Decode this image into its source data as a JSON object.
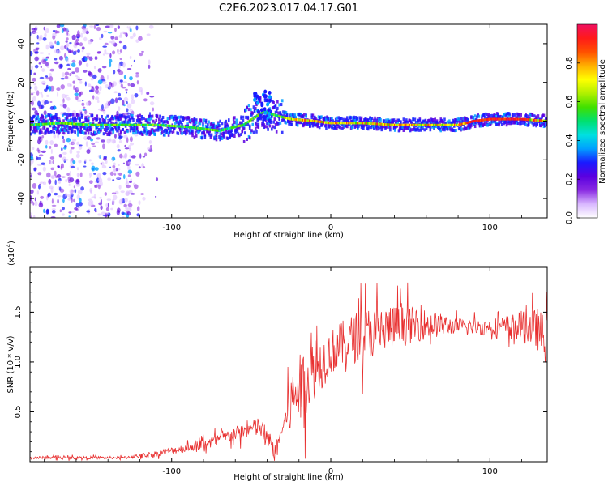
{
  "title": "C2E6.2023.017.04.17.G01",
  "chart_data": [
    {
      "type": "heatmap",
      "name": "spectrogram",
      "xlabel": "Height of straight line (km)",
      "ylabel": "Frequency (Hz)",
      "xlim": [
        -189,
        136
      ],
      "ylim": [
        -50,
        50
      ],
      "xticks": [
        -100,
        0,
        100
      ],
      "yticks": [
        -40,
        -20,
        0,
        20,
        40
      ],
      "colorbar": {
        "label": "Normalized spectral amplitude",
        "range": [
          0,
          1
        ],
        "ticks": [
          "0.0",
          "0.2",
          "0.4",
          "0.6",
          "0.8"
        ],
        "tick_values": [
          0.0,
          0.2,
          0.4,
          0.6,
          0.8
        ],
        "colors": [
          "#ffffff",
          "#d9b8ff",
          "#8a2be2",
          "#5a00e0",
          "#1a1aff",
          "#00a0ff",
          "#00e0e0",
          "#00e070",
          "#40e000",
          "#b0f000",
          "#ffff00",
          "#ffb000",
          "#ff5000",
          "#ff1a1a",
          "#f01060"
        ]
      },
      "ridge": {
        "x": [
          -189,
          -170,
          -150,
          -130,
          -110,
          -90,
          -70,
          -55,
          -42,
          -35,
          -25,
          -10,
          0,
          20,
          40,
          60,
          80,
          90,
          100,
          110,
          120,
          136
        ],
        "frequency": [
          -2,
          -1,
          -2,
          -2,
          -2,
          -3,
          -5,
          -2,
          5,
          3,
          1,
          0,
          -1,
          -1,
          -2,
          -2,
          -2,
          0,
          1,
          1,
          1,
          0
        ]
      }
    },
    {
      "type": "line",
      "name": "snr",
      "xlabel": "Height of straight line (km)",
      "ylabel": "SNR (10 * v/v)",
      "multiplier_label": "(x10",
      "multiplier_exp": "4",
      "multiplier_close": ")",
      "xlim": [
        -189,
        136
      ],
      "ylim": [
        0,
        1.95
      ],
      "xticks": [
        -100,
        0,
        100
      ],
      "yticks": [
        0.5,
        1.0,
        1.5
      ],
      "ytick_labels": [
        "0.5",
        "1.0",
        "1.5"
      ],
      "color": "#e83030",
      "trend": {
        "x": [
          -189,
          -130,
          -110,
          -90,
          -75,
          -60,
          -45,
          -35,
          -28,
          -22,
          -18,
          -12,
          -5,
          0,
          10,
          20,
          30,
          40,
          55,
          70,
          80,
          90,
          100,
          110,
          120,
          130,
          136
        ],
        "y": [
          0.04,
          0.04,
          0.08,
          0.14,
          0.2,
          0.28,
          0.35,
          0.1,
          0.45,
          0.7,
          0.75,
          0.9,
          1.0,
          1.1,
          1.2,
          1.28,
          1.32,
          1.35,
          1.38,
          1.37,
          1.36,
          1.35,
          1.35,
          1.35,
          1.35,
          1.33,
          1.2
        ]
      },
      "noise": {
        "x": [
          -189,
          -130,
          -100,
          -80,
          -50,
          -40,
          -30,
          -25,
          -18,
          0,
          20,
          40,
          60,
          80,
          100,
          120,
          136
        ],
        "amp": [
          0.02,
          0.02,
          0.05,
          0.08,
          0.12,
          0.18,
          0.05,
          0.45,
          0.5,
          0.32,
          0.38,
          0.32,
          0.22,
          0.1,
          0.12,
          0.22,
          0.35
        ]
      }
    }
  ]
}
